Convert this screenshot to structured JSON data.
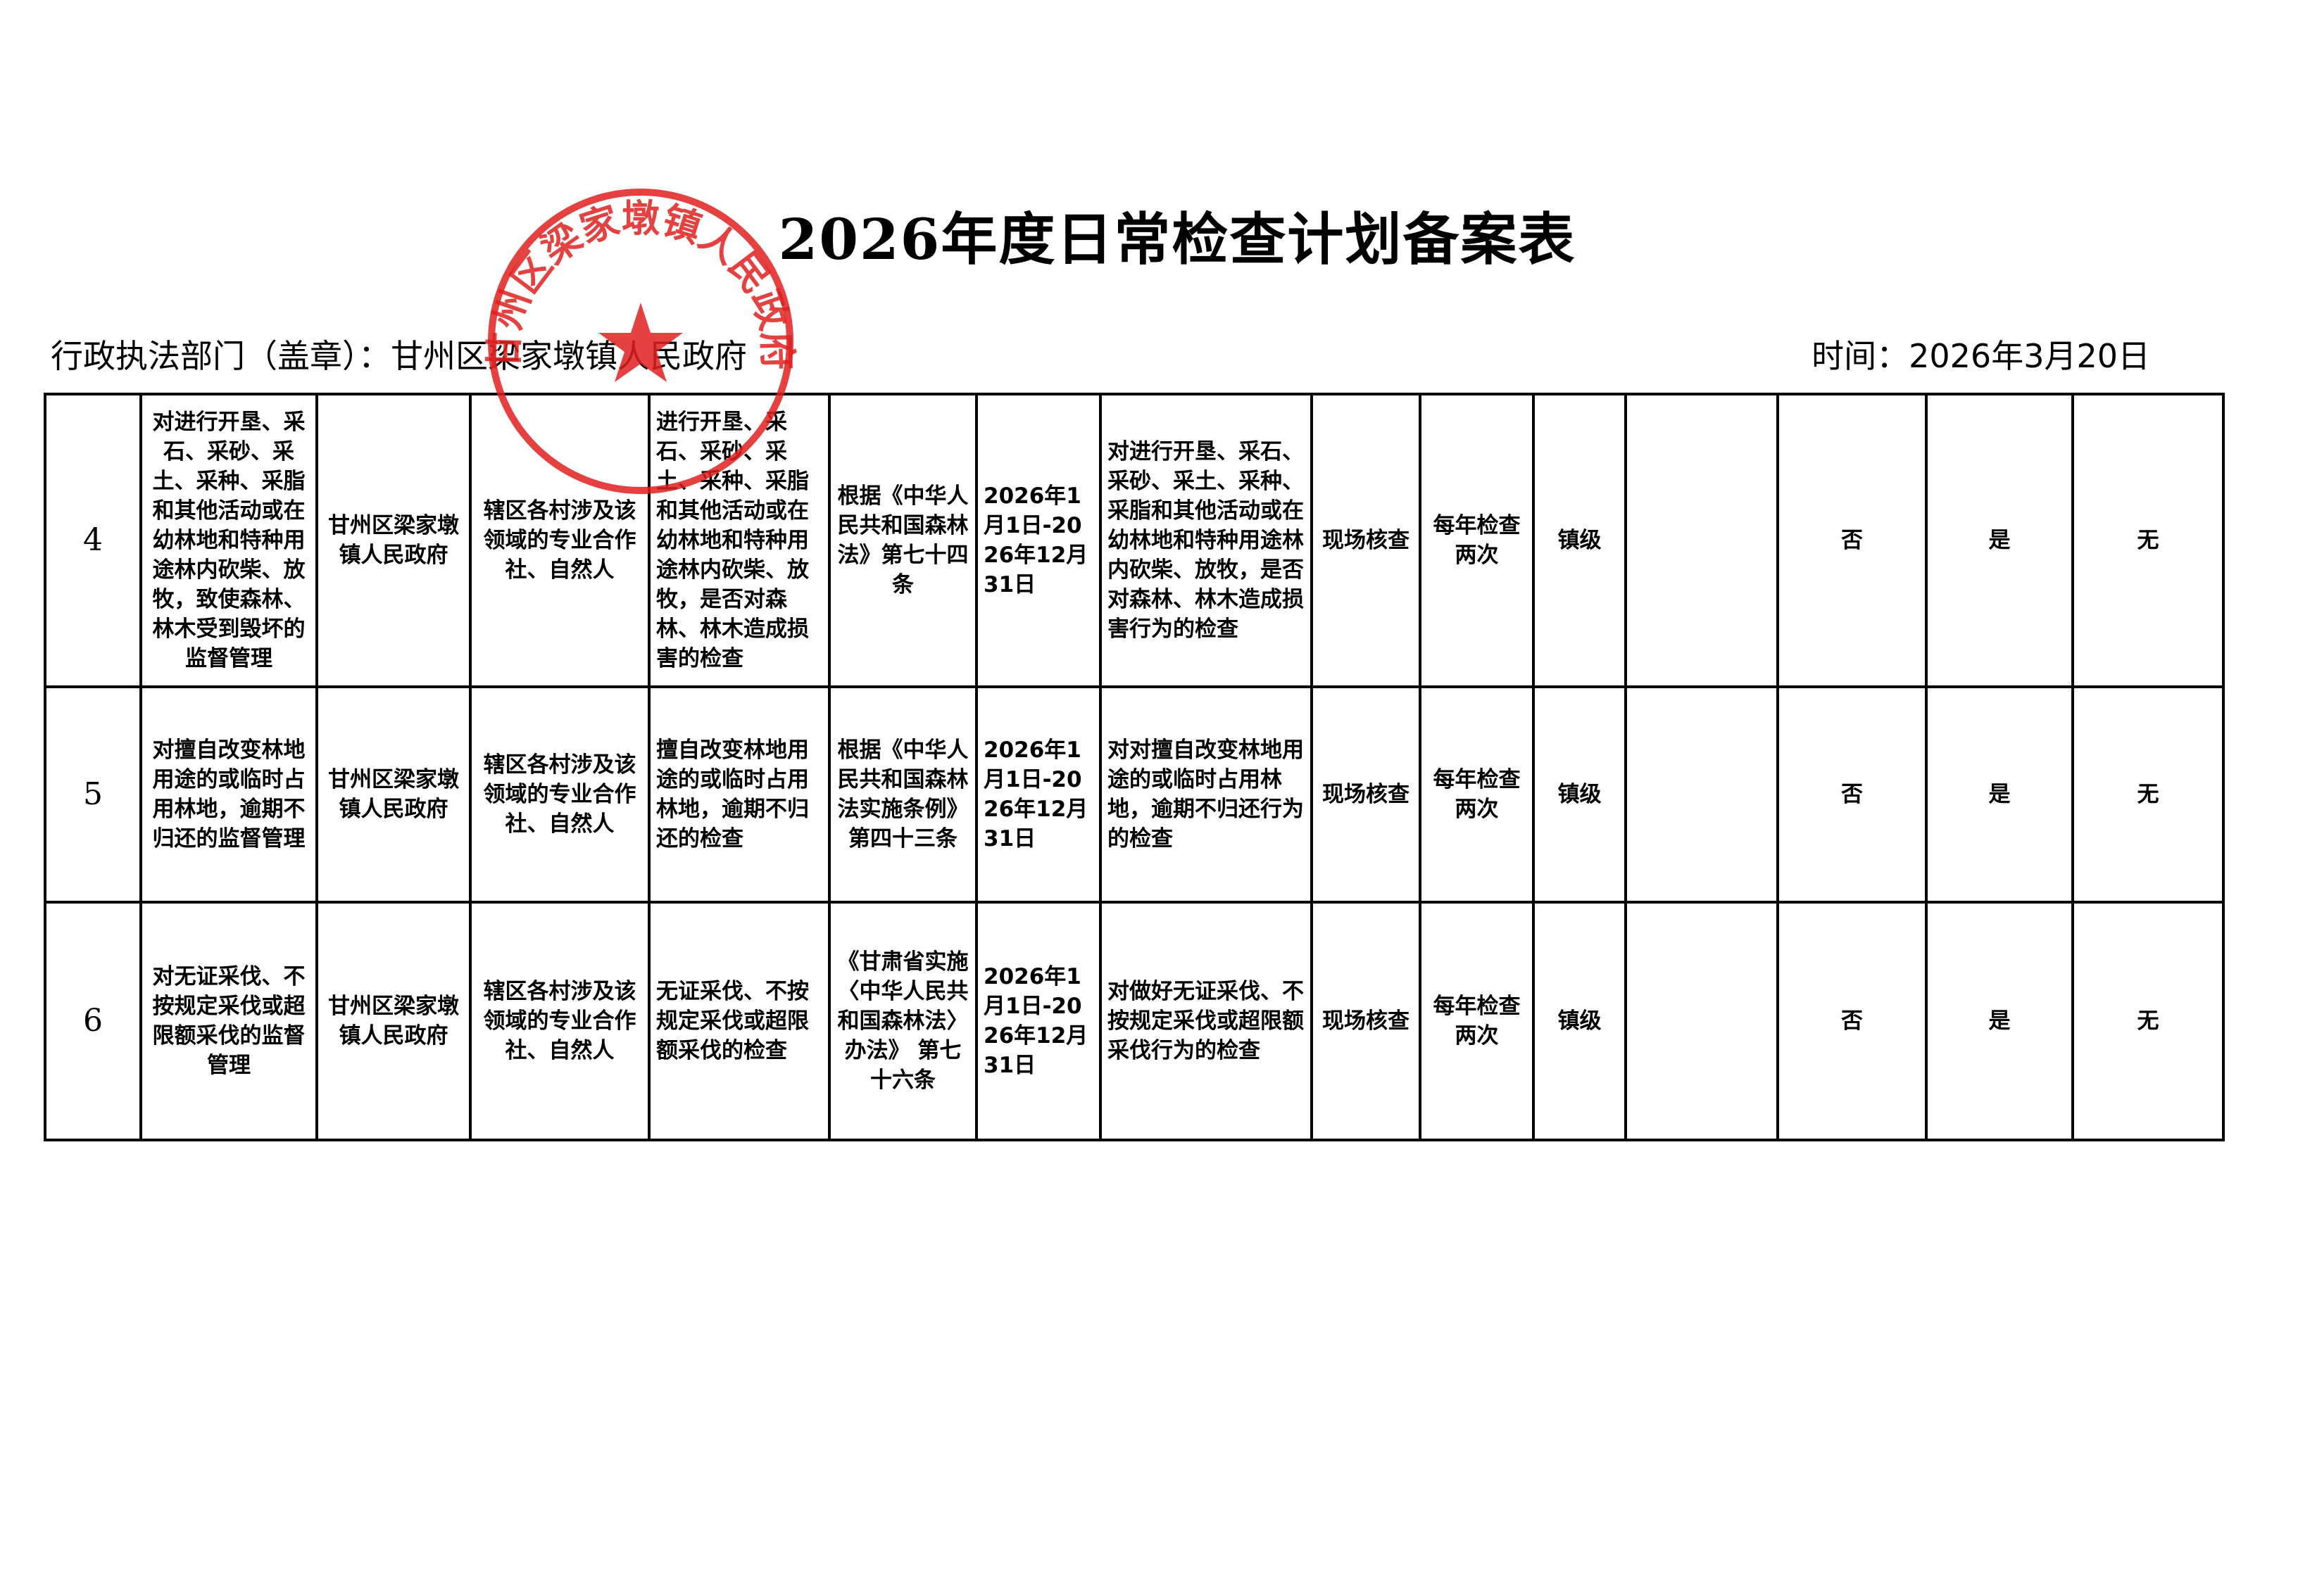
{
  "title": "2026年度日常检查计划备案表",
  "header": {
    "department_label": "行政执法部门（盖章）：",
    "department": "甘州区梁家墩镇人民政府",
    "date_label": "时间：",
    "date": "2026年3月20日"
  },
  "seal": {
    "text": "甘州区梁家墩镇人民政府",
    "color": "#e02020",
    "icon": "star-icon"
  },
  "rows": [
    {
      "no": "4",
      "item": "对进行开垦、采石、采砂、采土、采种、采脂和其他活动或在幼林地和特种用途林内砍柴、放牧，致使森林、林木受到毁坏的监督管理",
      "subject": "甘州区梁家墩镇人民政府",
      "target": "辖区各村涉及该领域的专业合作社、自然人",
      "content": "进行开垦、采石、采砂、采土、采种、采脂和其他活动或在幼林地和特种用途林内砍柴、放牧，是否对森林、林木造成损害的检查",
      "basis": "根据《中华人民共和国森林法》第七十四条",
      "period": "2026年1月1日-2026年12月31日",
      "scope": "对进行开垦、采石、采砂、采土、采种、采脂和其他活动或在幼林地和特种用途林内砍柴、放牧，是否对森林、林木造成损害行为的检查",
      "method": "现场核查",
      "frequency": "每年检查两次",
      "level": "镇级",
      "c11": "",
      "c12": "否",
      "c13": "是",
      "c14": "无"
    },
    {
      "no": "5",
      "item": "对擅自改变林地用途的或临时占用林地，逾期不归还的监督管理",
      "subject": "甘州区梁家墩镇人民政府",
      "target": "辖区各村涉及该领域的专业合作社、自然人",
      "content": "擅自改变林地用途的或临时占用林地，逾期不归还的检查",
      "basis": "根据《中华人民共和国森林法实施条例》第四十三条",
      "period": "2026年1月1日-2026年12月31日",
      "scope": "对对擅自改变林地用途的或临时占用林地，逾期不归还行为的检查",
      "method": "现场核查",
      "frequency": "每年检查两次",
      "level": "镇级",
      "c11": "",
      "c12": "否",
      "c13": "是",
      "c14": "无"
    },
    {
      "no": "6",
      "item": "对无证采伐、不按规定采伐或超限额采伐的监督管理",
      "subject": "甘州区梁家墩镇人民政府",
      "target": "辖区各村涉及该领域的专业合作社、自然人",
      "content": "无证采伐、不按规定采伐或超限额采伐的检查",
      "basis": "《甘肃省实施〈中华人民共和国森林法〉办法》 第七十六条",
      "period": "2026年1月1日-2026年12月31日",
      "scope": "对做好无证采伐、不按规定采伐或超限额采伐行为的检查",
      "method": "现场核查",
      "frequency": "每年检查两次",
      "level": "镇级",
      "c11": "",
      "c12": "否",
      "c13": "是",
      "c14": "无"
    }
  ]
}
